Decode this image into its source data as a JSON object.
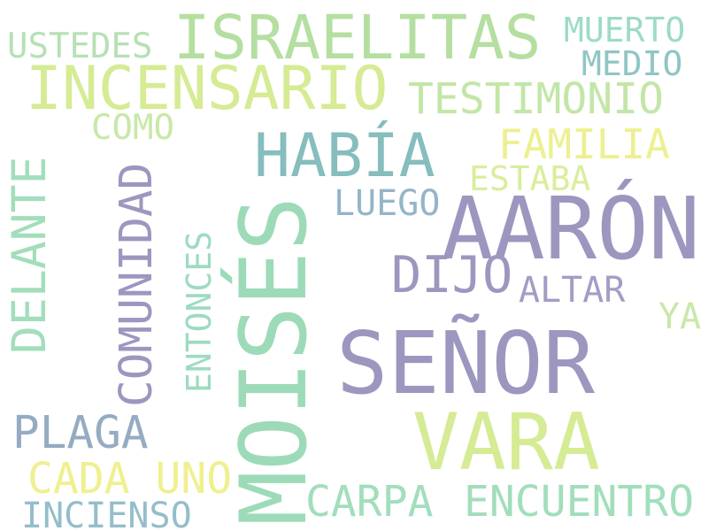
{
  "words": {
    "israelitas": {
      "text": "ISRAELITAS",
      "color": "#b5dfa1"
    },
    "aaron": {
      "text": "AARÓN",
      "color": "#9c97bf"
    },
    "moises": {
      "text": "MOISÉS",
      "color": "#9ddbb8"
    },
    "senor": {
      "text": "SEÑOR",
      "color": "#9c97bf"
    },
    "incensario": {
      "text": "INCENSARIO",
      "color": "#d5eb94"
    },
    "vara": {
      "text": "VARA",
      "color": "#d5eb94"
    },
    "habia": {
      "text": "HABÍA",
      "color": "#86bdbd"
    },
    "delante": {
      "text": "DELANTE",
      "color": "#a2debb"
    },
    "comunidad": {
      "text": "COMUNIDAD",
      "color": "#9c97bf"
    },
    "testimonio": {
      "text": "TESTIMONIO",
      "color": "#c3e6a7"
    },
    "familia": {
      "text": "FAMILIA",
      "color": "#edf091"
    },
    "dijo": {
      "text": "DIJO",
      "color": "#9c97bf"
    },
    "carpa": {
      "text": "CARPA",
      "color": "#a2debb"
    },
    "encuentro": {
      "text": "ENCUENTRO",
      "color": "#a2debb"
    },
    "plaga": {
      "text": "PLAGA",
      "color": "#95abc2"
    },
    "cada_uno": {
      "text": "CADA UNO",
      "color": "#eff08f"
    },
    "incienso": {
      "text": "INCIENSO",
      "color": "#95bdca"
    },
    "muerto": {
      "text": "MUERTO",
      "color": "#9ddbc6"
    },
    "medio": {
      "text": "MEDIO",
      "color": "#8ec6c4"
    },
    "ustedes": {
      "text": "USTEDES",
      "color": "#b6e0b5"
    },
    "como": {
      "text": "COMO",
      "color": "#c8e8a8"
    },
    "estaba": {
      "text": "ESTABA",
      "color": "#d8ee9c"
    },
    "luego": {
      "text": "LUEGO",
      "color": "#95b5c8"
    },
    "entonces": {
      "text": "ENTONCES",
      "color": "#9ddbc0"
    },
    "altar": {
      "text": "ALTAR",
      "color": "#a59cc6"
    },
    "ya": {
      "text": "YA",
      "color": "#c8e8a8"
    }
  }
}
